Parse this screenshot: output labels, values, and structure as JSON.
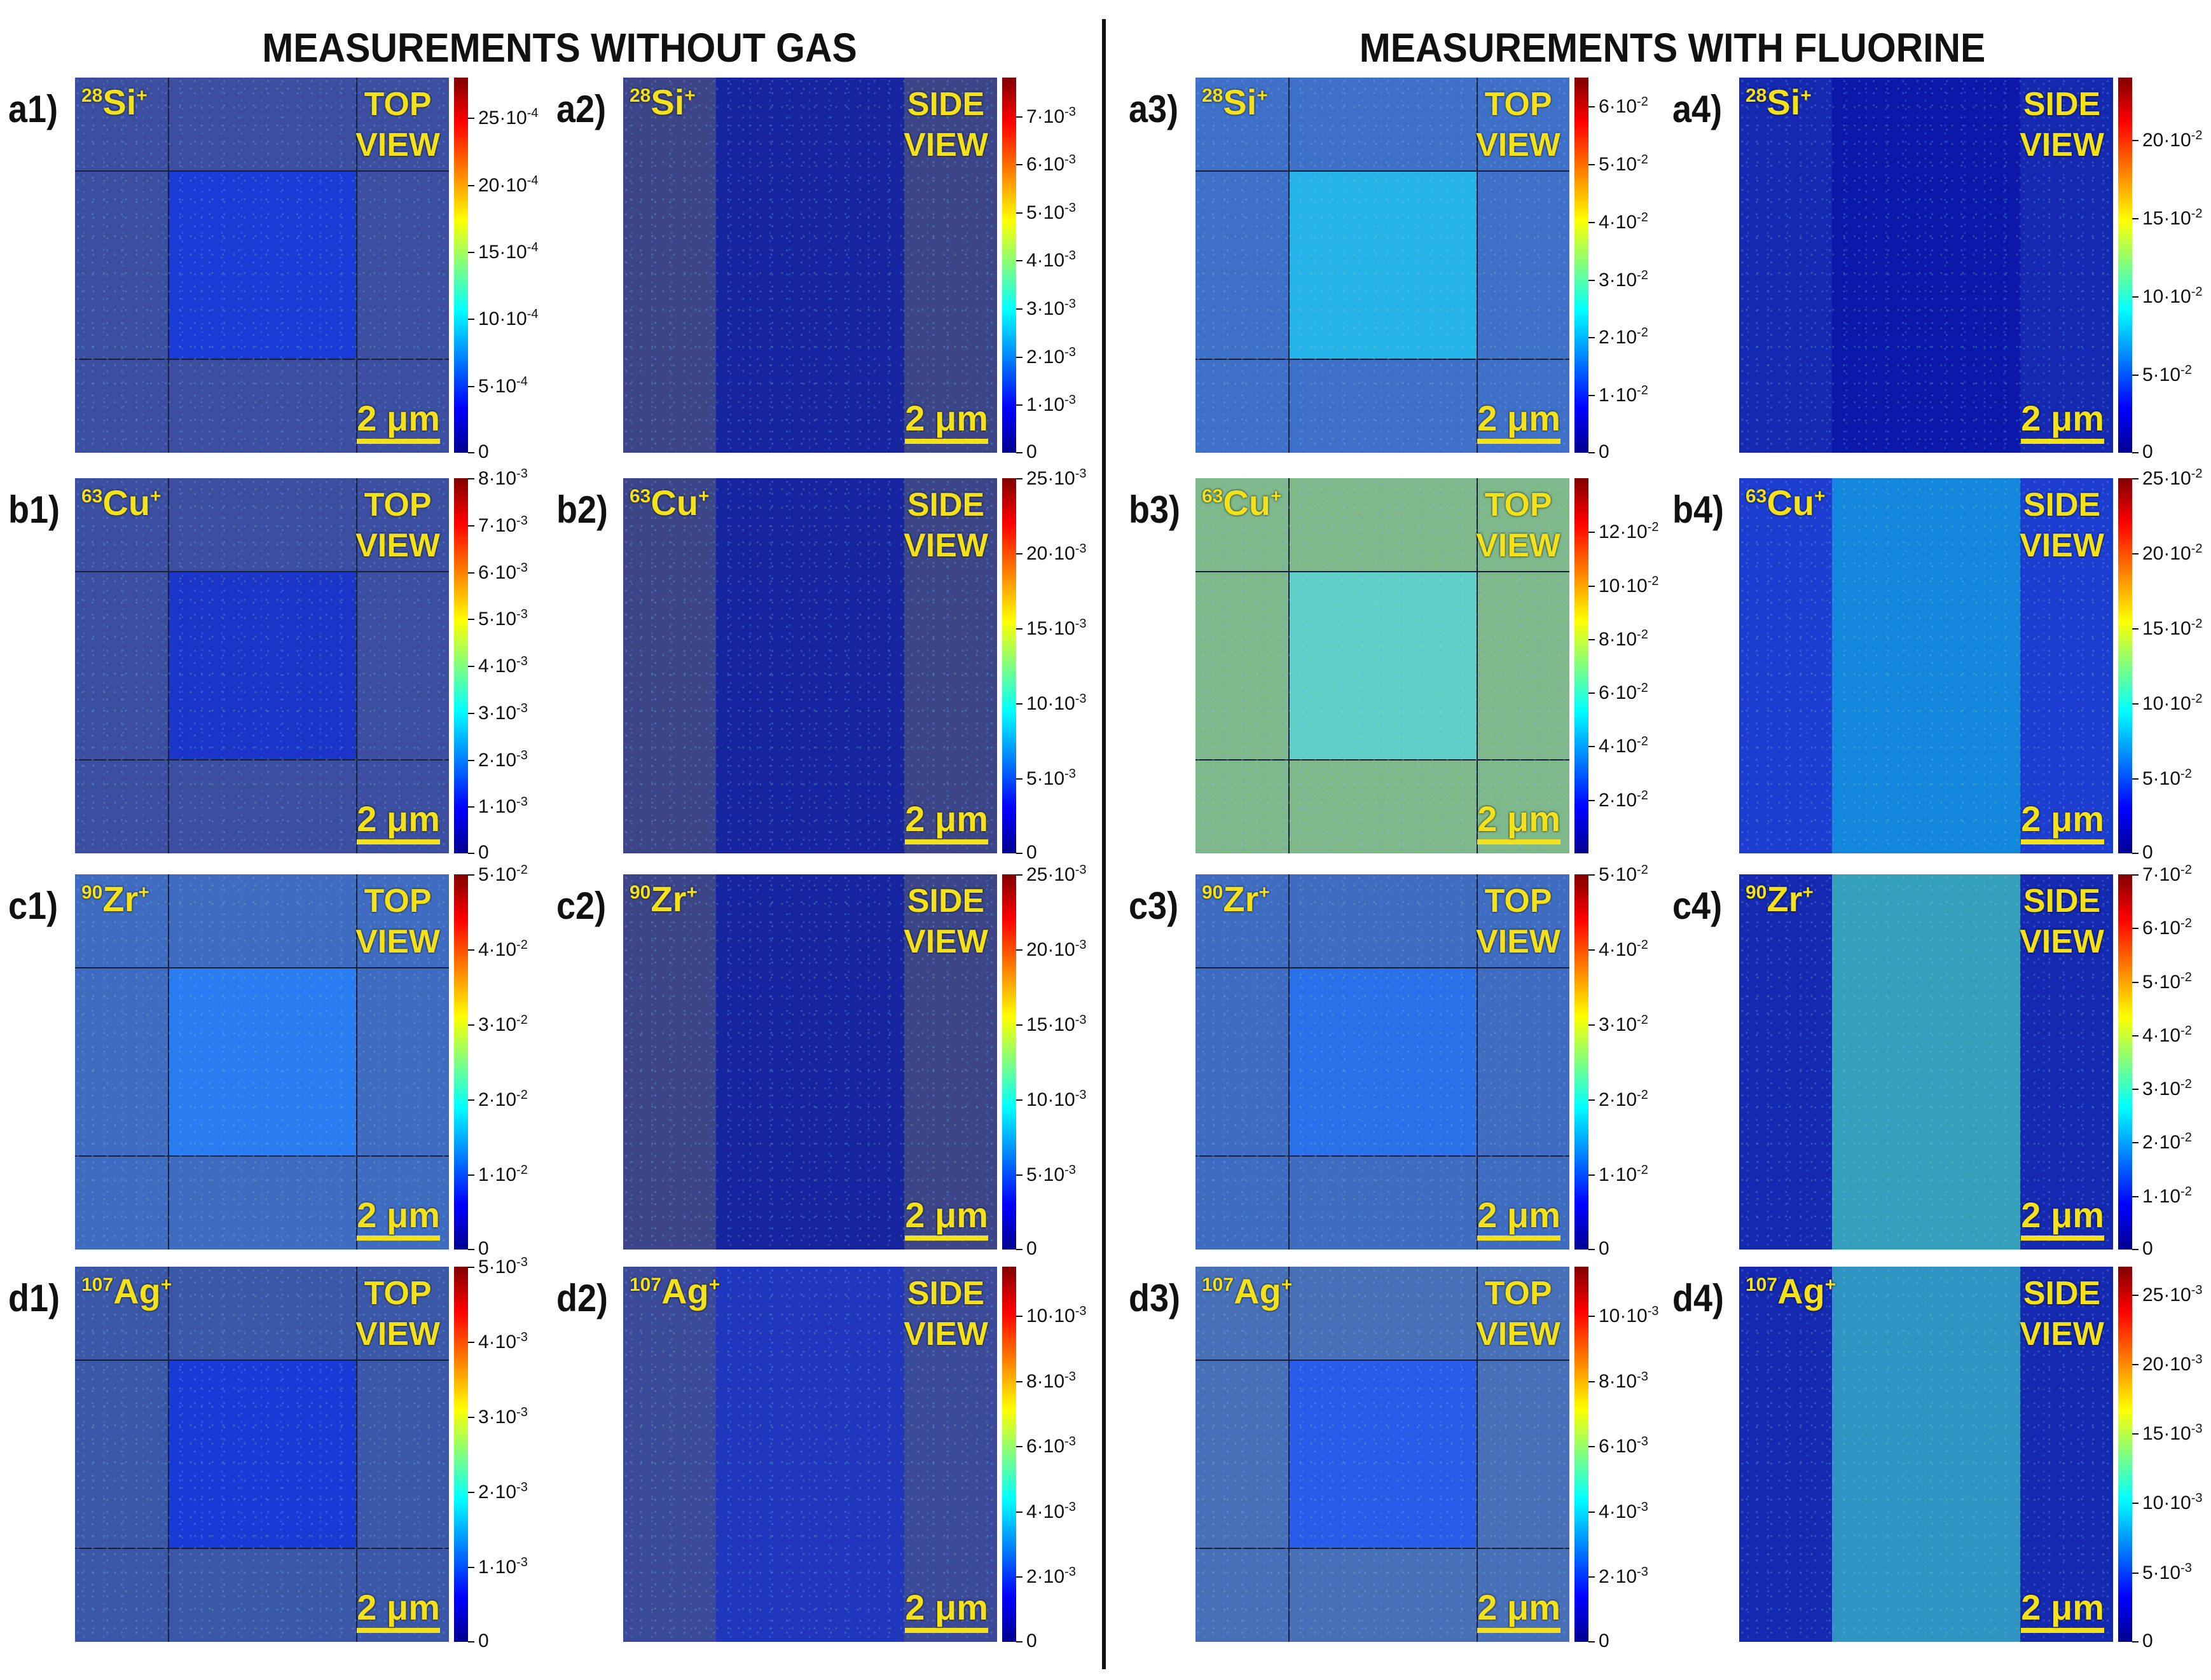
{
  "titles": {
    "left": "MEASUREMENTS WITHOUT GAS",
    "right": "MEASUREMENTS WITH FLUORINE"
  },
  "scale_label": "2 μm",
  "panels": [
    {
      "id": "a1",
      "label": "a1)",
      "mass": "28",
      "element": "Si",
      "charge": "+",
      "view": [
        "TOP",
        "VIEW"
      ],
      "style": "top",
      "color": "#3b4ea0",
      "inner": "#1a3bd6",
      "ticks": [
        "25·10",
        "20·10",
        "15·10",
        "10·10",
        "5·10",
        "0"
      ],
      "exps": [
        "-4",
        "-4",
        "-4",
        "-4",
        "-4",
        ""
      ],
      "values": [
        25,
        20,
        15,
        10,
        5,
        0
      ],
      "max": 28
    },
    {
      "id": "a2",
      "label": "a2)",
      "mass": "28",
      "element": "Si",
      "charge": "+",
      "view": [
        "SIDE",
        "VIEW"
      ],
      "style": "side",
      "color": "#3b4588",
      "inner": "#0b1aa8",
      "ticks": [
        "7·10",
        "6·10",
        "5·10",
        "4·10",
        "3·10",
        "2·10",
        "1·10",
        "0"
      ],
      "exps": [
        "-3",
        "-3",
        "-3",
        "-3",
        "-3",
        "-3",
        "-3",
        ""
      ],
      "values": [
        7,
        6,
        5,
        4,
        3,
        2,
        1,
        0
      ],
      "max": 7.8
    },
    {
      "id": "a3",
      "label": "a3)",
      "mass": "28",
      "element": "Si",
      "charge": "+",
      "view": [
        "TOP",
        "VIEW"
      ],
      "style": "top",
      "color": "#3f70c8",
      "inner": "#25b3e8",
      "ticks": [
        "6·10",
        "5·10",
        "4·10",
        "3·10",
        "2·10",
        "1·10",
        "0"
      ],
      "exps": [
        "-2",
        "-2",
        "-2",
        "-2",
        "-2",
        "-2",
        ""
      ],
      "values": [
        6,
        5,
        4,
        3,
        2,
        1,
        0
      ],
      "max": 6.5
    },
    {
      "id": "a4",
      "label": "a4)",
      "mass": "28",
      "element": "Si",
      "charge": "+",
      "view": [
        "SIDE",
        "VIEW"
      ],
      "style": "side",
      "color": "#1428b0",
      "inner": "#0a13a8",
      "ticks": [
        "20·10",
        "15·10",
        "10·10",
        "5·10",
        "0"
      ],
      "exps": [
        "-2",
        "-2",
        "-2",
        "-2",
        ""
      ],
      "values": [
        20,
        15,
        10,
        5,
        0
      ],
      "max": 24
    },
    {
      "id": "b1",
      "label": "b1)",
      "mass": "63",
      "element": "Cu",
      "charge": "+",
      "view": [
        "TOP",
        "VIEW"
      ],
      "style": "top",
      "color": "#3b4ea0",
      "inner": "#1a35c8",
      "ticks": [
        "8·10",
        "7·10",
        "6·10",
        "5·10",
        "4·10",
        "3·10",
        "2·10",
        "1·10",
        "0"
      ],
      "exps": [
        "-3",
        "-3",
        "-3",
        "-3",
        "-3",
        "-3",
        "-3",
        "-3",
        ""
      ],
      "values": [
        8,
        7,
        6,
        5,
        4,
        3,
        2,
        1,
        0
      ],
      "max": 8
    },
    {
      "id": "b2",
      "label": "b2)",
      "mass": "63",
      "element": "Cu",
      "charge": "+",
      "view": [
        "SIDE",
        "VIEW"
      ],
      "style": "side",
      "color": "#3b4588",
      "inner": "#0b1aa8",
      "ticks": [
        "25·10",
        "20·10",
        "15·10",
        "10·10",
        "5·10",
        "0"
      ],
      "exps": [
        "-3",
        "-3",
        "-3",
        "-3",
        "-3",
        ""
      ],
      "values": [
        25,
        20,
        15,
        10,
        5,
        0
      ],
      "max": 25
    },
    {
      "id": "b3",
      "label": "b3)",
      "mass": "63",
      "element": "Cu",
      "charge": "+",
      "view": [
        "TOP",
        "VIEW"
      ],
      "style": "top",
      "color": "#7fb88a",
      "inner": "#5fd0c8",
      "ticks": [
        "12·10",
        "10·10",
        "8·10",
        "6·10",
        "4·10",
        "2·10"
      ],
      "exps": [
        "-2",
        "-2",
        "-2",
        "-2",
        "-2",
        "-2"
      ],
      "values": [
        12,
        10,
        8,
        6,
        4,
        2
      ],
      "max": 14
    },
    {
      "id": "b4",
      "label": "b4)",
      "mass": "63",
      "element": "Cu",
      "charge": "+",
      "view": [
        "SIDE",
        "VIEW"
      ],
      "style": "side",
      "color": "#1c3dd0",
      "inner": "#10a0e0",
      "ticks": [
        "25·10",
        "20·10",
        "15·10",
        "10·10",
        "5·10",
        "0"
      ],
      "exps": [
        "-2",
        "-2",
        "-2",
        "-2",
        "-2",
        ""
      ],
      "values": [
        25,
        20,
        15,
        10,
        5,
        0
      ],
      "max": 25
    },
    {
      "id": "c1",
      "label": "c1)",
      "mass": "90",
      "element": "Zr",
      "charge": "+",
      "view": [
        "TOP",
        "VIEW"
      ],
      "style": "top",
      "color": "#3f6cc0",
      "inner": "#2a7cf0",
      "ticks": [
        "5·10",
        "4·10",
        "3·10",
        "2·10",
        "1·10",
        "0"
      ],
      "exps": [
        "-2",
        "-2",
        "-2",
        "-2",
        "-2",
        ""
      ],
      "values": [
        5,
        4,
        3,
        2,
        1,
        0
      ],
      "max": 5
    },
    {
      "id": "c2",
      "label": "c2)",
      "mass": "90",
      "element": "Zr",
      "charge": "+",
      "view": [
        "SIDE",
        "VIEW"
      ],
      "style": "side",
      "color": "#3b4588",
      "inner": "#0b1aa8",
      "ticks": [
        "25·10",
        "20·10",
        "15·10",
        "10·10",
        "5·10",
        "0"
      ],
      "exps": [
        "-3",
        "-3",
        "-3",
        "-3",
        "-3",
        ""
      ],
      "values": [
        25,
        20,
        15,
        10,
        5,
        0
      ],
      "max": 25
    },
    {
      "id": "c3",
      "label": "c3)",
      "mass": "90",
      "element": "Zr",
      "charge": "+",
      "view": [
        "TOP",
        "VIEW"
      ],
      "style": "top",
      "color": "#3f6cc0",
      "inner": "#2a70e8",
      "ticks": [
        "5·10",
        "4·10",
        "3·10",
        "2·10",
        "1·10",
        "0"
      ],
      "exps": [
        "-2",
        "-2",
        "-2",
        "-2",
        "-2",
        ""
      ],
      "values": [
        5,
        4,
        3,
        2,
        1,
        0
      ],
      "max": 5
    },
    {
      "id": "c4",
      "label": "c4)",
      "mass": "90",
      "element": "Zr",
      "charge": "+",
      "view": [
        "SIDE",
        "VIEW"
      ],
      "style": "side",
      "color": "#1428b0",
      "inner": "#40c8c0",
      "ticks": [
        "7·10",
        "6·10",
        "5·10",
        "4·10",
        "3·10",
        "2·10",
        "1·10",
        "0"
      ],
      "exps": [
        "-2",
        "-2",
        "-2",
        "-2",
        "-2",
        "-2",
        "-2",
        ""
      ],
      "values": [
        7,
        6,
        5,
        4,
        3,
        2,
        1,
        0
      ],
      "max": 7
    },
    {
      "id": "d1",
      "label": "d1)",
      "mass": "107",
      "element": "Ag",
      "charge": "+",
      "view": [
        "TOP",
        "VIEW"
      ],
      "style": "top",
      "color": "#3b58a8",
      "inner": "#1a3ad8",
      "ticks": [
        "5·10",
        "4·10",
        "3·10",
        "2·10",
        "1·10",
        "0"
      ],
      "exps": [
        "-3",
        "-3",
        "-3",
        "-3",
        "-3",
        ""
      ],
      "values": [
        5,
        4,
        3,
        2,
        1,
        0
      ],
      "max": 5
    },
    {
      "id": "d2",
      "label": "d2)",
      "mass": "107",
      "element": "Ag",
      "charge": "+",
      "view": [
        "SIDE",
        "VIEW"
      ],
      "style": "side",
      "color": "#3b4a98",
      "inner": "#1830c8",
      "ticks": [
        "10·10",
        "8·10",
        "6·10",
        "4·10",
        "2·10",
        "0"
      ],
      "exps": [
        "-3",
        "-3",
        "-3",
        "-3",
        "-3",
        ""
      ],
      "values": [
        10,
        8,
        6,
        4,
        2,
        0
      ],
      "max": 11.5
    },
    {
      "id": "d3",
      "label": "d3)",
      "mass": "107",
      "element": "Ag",
      "charge": "+",
      "view": [
        "TOP",
        "VIEW"
      ],
      "style": "top",
      "color": "#4870b8",
      "inner": "#2a5ae8",
      "ticks": [
        "10·10",
        "8·10",
        "6·10",
        "4·10",
        "2·10",
        "0"
      ],
      "exps": [
        "-3",
        "-3",
        "-3",
        "-3",
        "-3",
        ""
      ],
      "values": [
        10,
        8,
        6,
        4,
        2,
        0
      ],
      "max": 11.5
    },
    {
      "id": "d4",
      "label": "d4)",
      "mass": "107",
      "element": "Ag",
      "charge": "+",
      "view": [
        "SIDE",
        "VIEW"
      ],
      "style": "side",
      "color": "#1428b0",
      "inner": "#38b8c8",
      "ticks": [
        "25·10",
        "20·10",
        "15·10",
        "10·10",
        "5·10",
        "0"
      ],
      "exps": [
        "-3",
        "-3",
        "-3",
        "-3",
        "-3",
        ""
      ],
      "values": [
        25,
        20,
        15,
        10,
        5,
        0
      ],
      "max": 27
    }
  ]
}
